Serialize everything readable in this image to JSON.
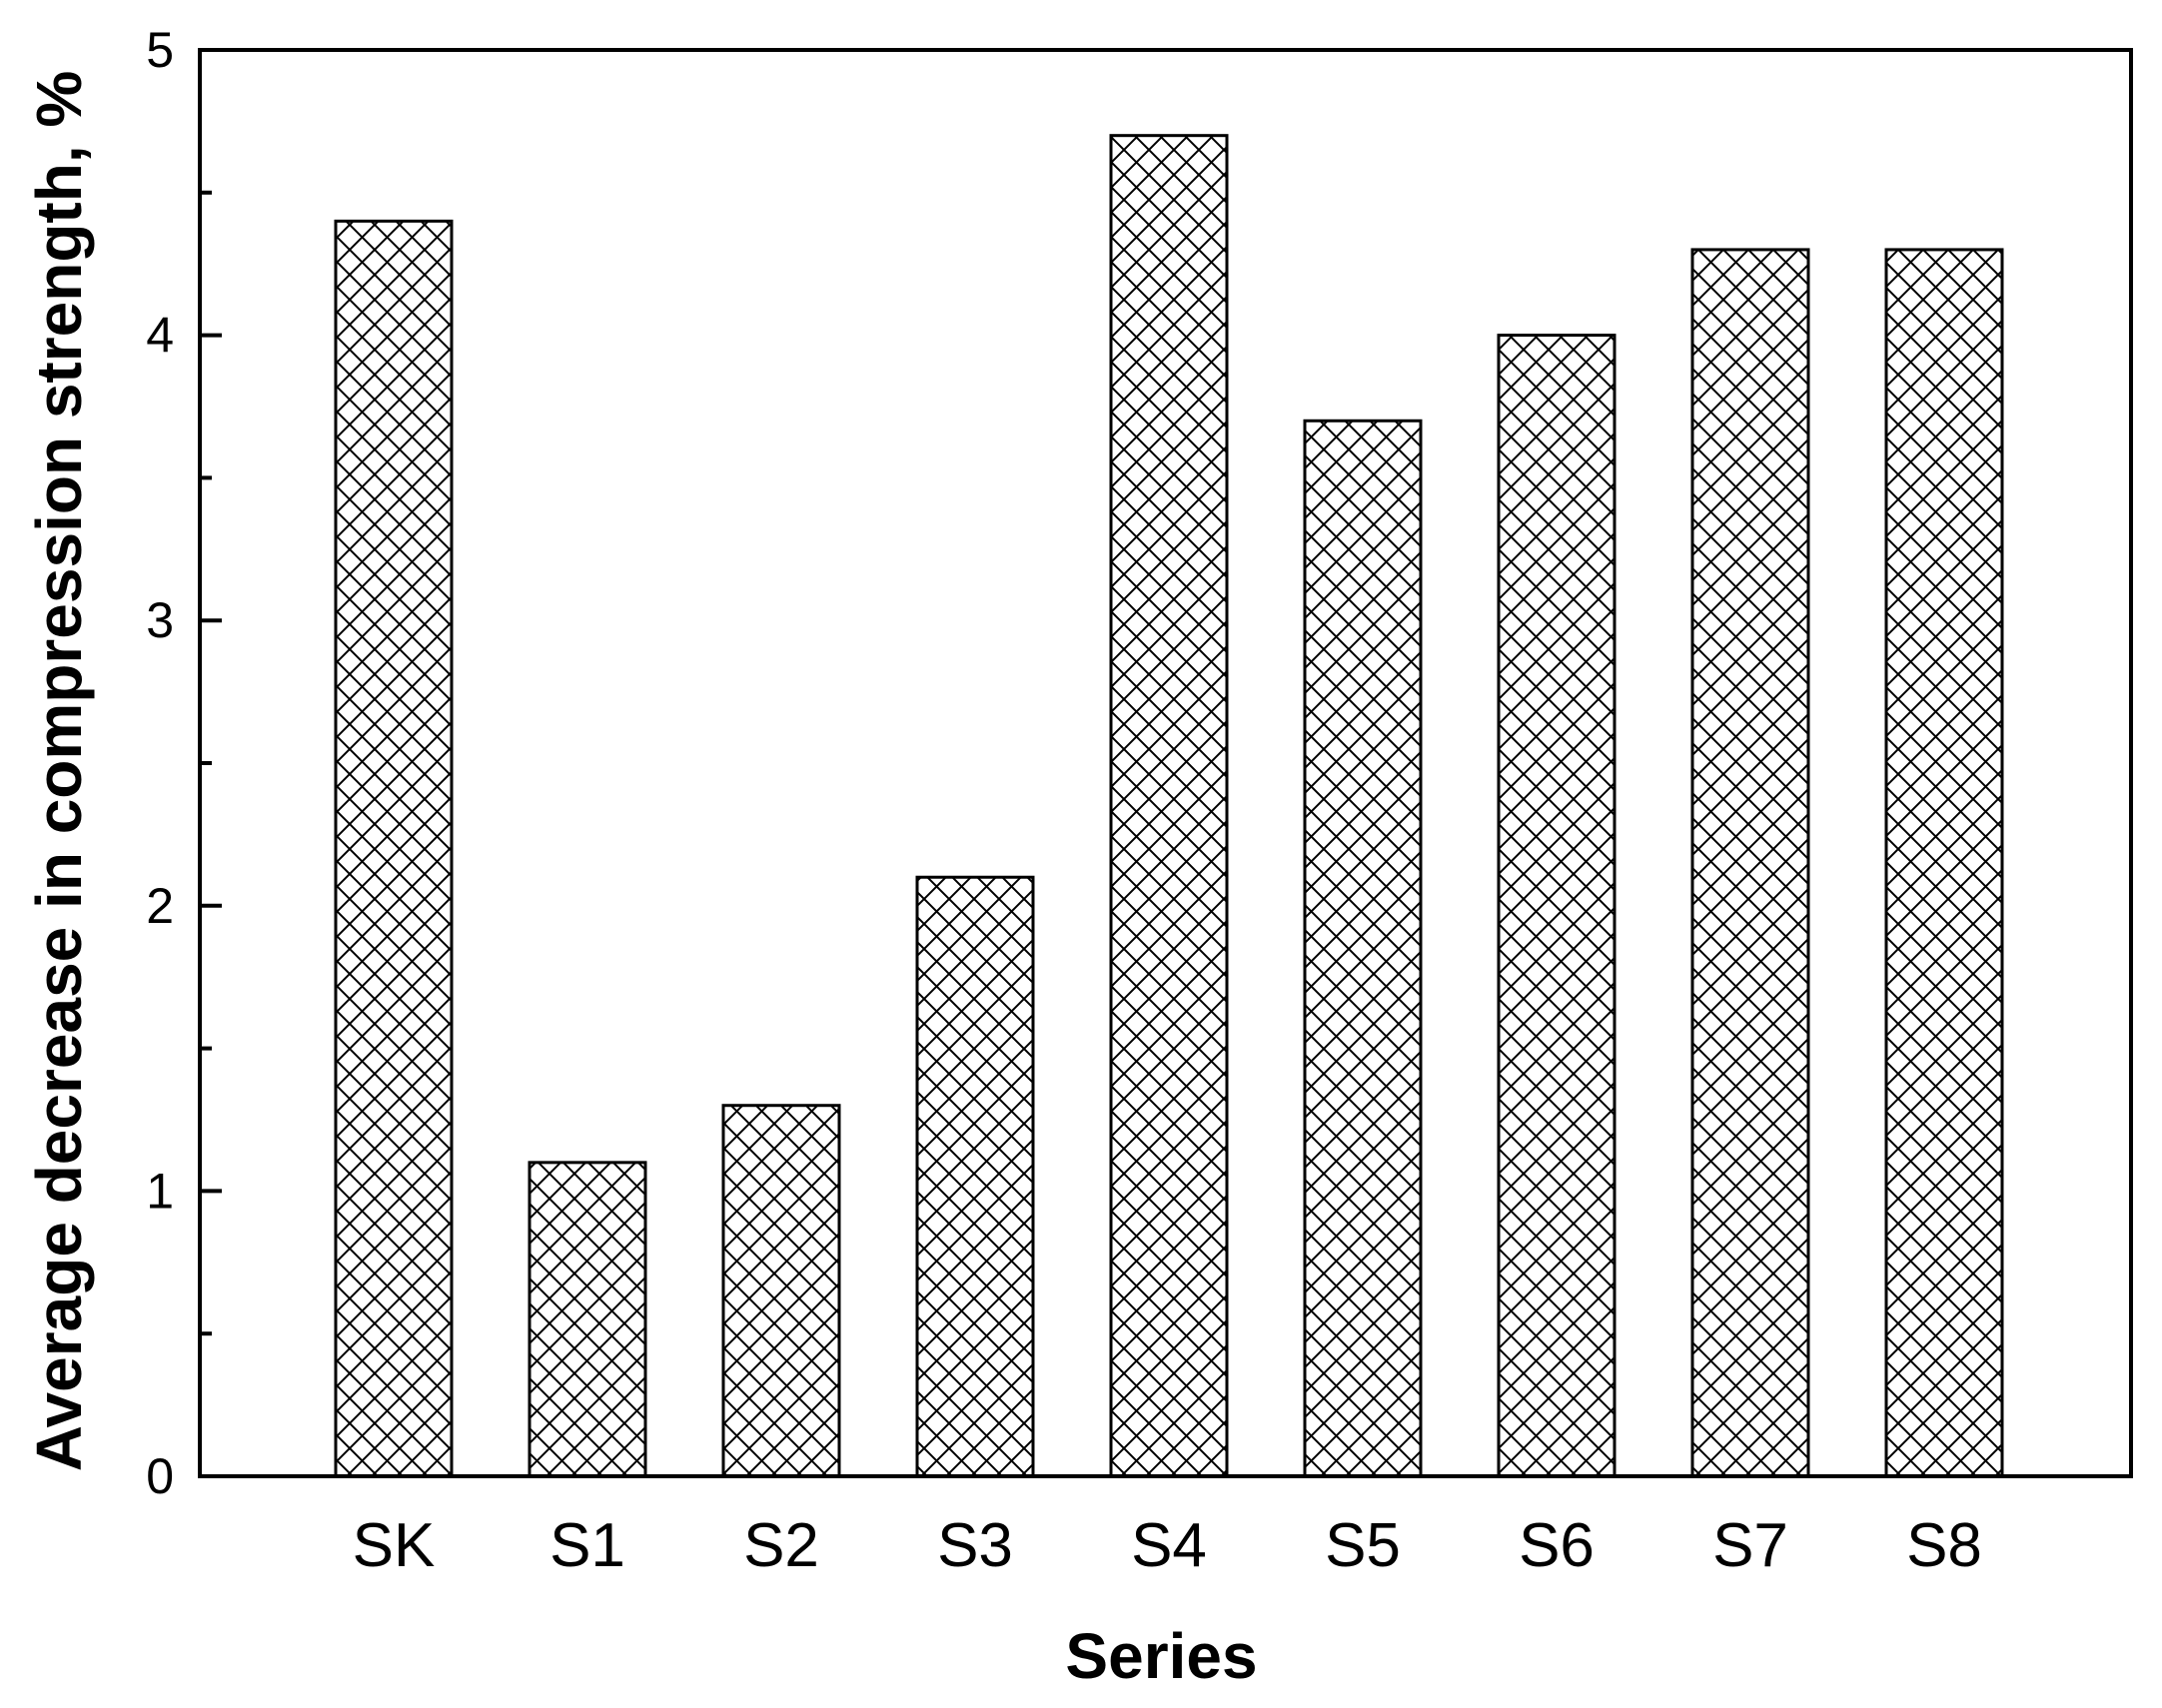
{
  "chart_data": {
    "type": "bar",
    "title": "",
    "xlabel": "Series",
    "ylabel": "Average decrease in compression strength, %",
    "categories": [
      "SK",
      "S1",
      "S2",
      "S3",
      "S4",
      "S5",
      "S6",
      "S7",
      "S8"
    ],
    "values": [
      4.4,
      1.1,
      1.3,
      2.1,
      4.7,
      3.7,
      4.0,
      4.3,
      4.3
    ],
    "ylim": [
      0,
      5
    ],
    "yticks_major": [
      0,
      1,
      2,
      3,
      4,
      5
    ],
    "yticks_minor": [
      0.5,
      1.5,
      2.5,
      3.5,
      4.5
    ],
    "grid": false,
    "legend": "none",
    "bar_fill": "crosshatch",
    "colors": {
      "bar_stroke": "#000000",
      "hatch": "#000000",
      "background": "#ffffff",
      "axis": "#000000"
    }
  }
}
